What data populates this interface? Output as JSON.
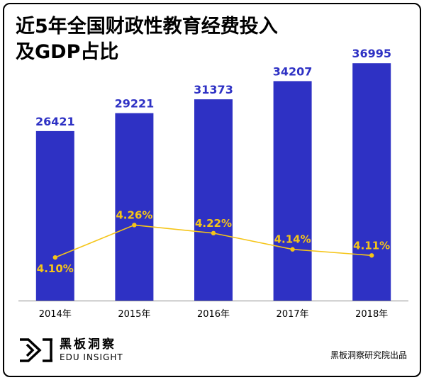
{
  "title": "近5年全国财政性教育经费投入\n及GDP占比",
  "colors": {
    "bar": "#2e31c4",
    "bar_label": "#2e31c4",
    "line": "#f5c518",
    "line_label": "#f5c518",
    "axis": "#888888"
  },
  "chart_data": {
    "type": "bar",
    "categories": [
      "2014年",
      "2015年",
      "2016年",
      "2017年",
      "2018年"
    ],
    "series": [
      {
        "type": "bar",
        "values": [
          26421,
          29221,
          31373,
          34207,
          36995
        ],
        "labels": [
          "26421",
          "29221",
          "31373",
          "34207",
          "36995"
        ]
      },
      {
        "type": "line",
        "values": [
          4.1,
          4.26,
          4.22,
          4.14,
          4.11
        ],
        "labels": [
          "4.10%",
          "4.26%",
          "4.22%",
          "4.14%",
          "4.11%"
        ]
      }
    ],
    "ylim": [
      0,
      40000
    ],
    "y2lim": [
      3.95,
      4.3
    ],
    "grid": false
  },
  "footer": {
    "logo_cn": "黑板洞察",
    "logo_en": "EDU INSIGHT",
    "source": "黑板洞察研究院出品"
  }
}
